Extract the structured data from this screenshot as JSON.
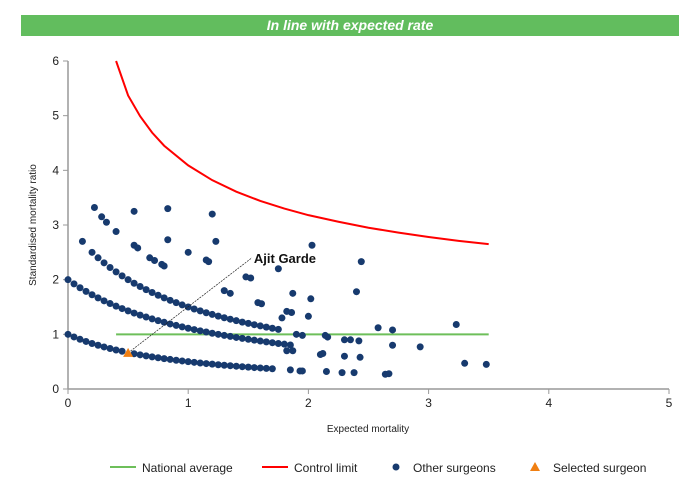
{
  "banner": {
    "text": "In line with expected rate",
    "color": "#62bd5e"
  },
  "chart_data": {
    "type": "scatter",
    "xlabel": "Expected mortality",
    "ylabel": "Standardised mortality ratio",
    "xlim": [
      0,
      5
    ],
    "ylim": [
      0,
      6
    ],
    "xticks": [
      "0",
      "1",
      "2",
      "3",
      "4",
      "5"
    ],
    "yticks": [
      "0",
      "1",
      "2",
      "3",
      "4",
      "5",
      "6"
    ],
    "grid": false,
    "legend_placement": "bottom",
    "colors": {
      "national_average": "#6dbf5a",
      "control_limit": "#ff0000",
      "other_surgeons": "#173a6e",
      "selected_surgeon": "#f07f12"
    },
    "legend": [
      "National average",
      "Control limit",
      "Other surgeons",
      "Selected surgeon"
    ],
    "national_average": {
      "name": "National average",
      "points": [
        [
          0.4,
          1
        ],
        [
          3.5,
          1
        ]
      ]
    },
    "control_limit": {
      "name": "Control limit",
      "points": [
        [
          0.4,
          6.0
        ],
        [
          0.5,
          5.37
        ],
        [
          0.6,
          4.99
        ],
        [
          0.7,
          4.69
        ],
        [
          0.8,
          4.45
        ],
        [
          1,
          4.09
        ],
        [
          1.2,
          3.82
        ],
        [
          1.4,
          3.61
        ],
        [
          1.6,
          3.44
        ],
        [
          1.8,
          3.3
        ],
        [
          2,
          3.18
        ],
        [
          2.25,
          3.06
        ],
        [
          2.5,
          2.95
        ],
        [
          2.75,
          2.86
        ],
        [
          3,
          2.78
        ],
        [
          3.25,
          2.71
        ],
        [
          3.5,
          2.65
        ]
      ]
    },
    "other_surgeons": {
      "name": "Other surgeons",
      "points": [
        [
          0,
          1
        ],
        [
          0.05,
          0.952
        ],
        [
          0.1,
          0.909
        ],
        [
          0.15,
          0.87
        ],
        [
          0.2,
          0.833
        ],
        [
          0.25,
          0.8
        ],
        [
          0.3,
          0.769
        ],
        [
          0.35,
          0.741
        ],
        [
          0.4,
          0.714
        ],
        [
          0.45,
          0.69
        ],
        [
          0.55,
          0.645
        ],
        [
          0.6,
          0.625
        ],
        [
          0.65,
          0.606
        ],
        [
          0.7,
          0.588
        ],
        [
          0.75,
          0.571
        ],
        [
          0.8,
          0.556
        ],
        [
          0.85,
          0.541
        ],
        [
          0.9,
          0.526
        ],
        [
          0.95,
          0.513
        ],
        [
          1,
          0.5
        ],
        [
          1.05,
          0.488
        ],
        [
          1.1,
          0.476
        ],
        [
          1.15,
          0.465
        ],
        [
          1.2,
          0.455
        ],
        [
          1.25,
          0.444
        ],
        [
          1.3,
          0.435
        ],
        [
          1.35,
          0.426
        ],
        [
          1.4,
          0.417
        ],
        [
          1.45,
          0.408
        ],
        [
          1.5,
          0.4
        ],
        [
          1.55,
          0.392
        ],
        [
          1.6,
          0.385
        ],
        [
          1.65,
          0.377
        ],
        [
          1.7,
          0.37
        ],
        [
          0,
          2
        ],
        [
          0.05,
          1.923
        ],
        [
          0.1,
          1.852
        ],
        [
          0.15,
          1.786
        ],
        [
          0.2,
          1.724
        ],
        [
          0.25,
          1.667
        ],
        [
          0.3,
          1.613
        ],
        [
          0.35,
          1.563
        ],
        [
          0.4,
          1.515
        ],
        [
          0.45,
          1.471
        ],
        [
          0.5,
          1.429
        ],
        [
          0.55,
          1.389
        ],
        [
          0.6,
          1.351
        ],
        [
          0.65,
          1.316
        ],
        [
          0.7,
          1.282
        ],
        [
          0.75,
          1.25
        ],
        [
          0.8,
          1.22
        ],
        [
          0.85,
          1.19
        ],
        [
          0.9,
          1.163
        ],
        [
          0.95,
          1.136
        ],
        [
          1,
          1.111
        ],
        [
          1.05,
          1.087
        ],
        [
          1.1,
          1.064
        ],
        [
          1.15,
          1.042
        ],
        [
          1.2,
          1.02
        ],
        [
          1.25,
          1.0
        ],
        [
          1.3,
          0.98
        ],
        [
          1.35,
          0.962
        ],
        [
          1.4,
          0.943
        ],
        [
          1.45,
          0.926
        ],
        [
          1.5,
          0.909
        ],
        [
          1.55,
          0.893
        ],
        [
          1.6,
          0.877
        ],
        [
          1.65,
          0.862
        ],
        [
          1.7,
          0.847
        ],
        [
          1.75,
          0.833
        ],
        [
          1.8,
          0.82
        ],
        [
          1.85,
          0.806
        ],
        [
          0.2,
          2.5
        ],
        [
          0.25,
          2.4
        ],
        [
          0.3,
          2.308
        ],
        [
          0.35,
          2.222
        ],
        [
          0.4,
          2.143
        ],
        [
          0.45,
          2.069
        ],
        [
          0.5,
          2.0
        ],
        [
          0.55,
          1.935
        ],
        [
          0.6,
          1.875
        ],
        [
          0.65,
          1.818
        ],
        [
          0.7,
          1.765
        ],
        [
          0.75,
          1.714
        ],
        [
          0.8,
          1.667
        ],
        [
          0.85,
          1.622
        ],
        [
          0.9,
          1.579
        ],
        [
          0.95,
          1.538
        ],
        [
          1,
          1.5
        ],
        [
          1.05,
          1.463
        ],
        [
          1.1,
          1.429
        ],
        [
          1.15,
          1.395
        ],
        [
          1.2,
          1.364
        ],
        [
          1.25,
          1.333
        ],
        [
          1.3,
          1.304
        ],
        [
          1.35,
          1.277
        ],
        [
          1.4,
          1.25
        ],
        [
          1.45,
          1.224
        ],
        [
          1.5,
          1.2
        ],
        [
          1.55,
          1.176
        ],
        [
          1.6,
          1.154
        ],
        [
          1.65,
          1.132
        ],
        [
          1.7,
          1.111
        ],
        [
          1.75,
          1.091
        ],
        [
          0.22,
          3.32
        ],
        [
          0.28,
          3.15
        ],
        [
          0.32,
          3.05
        ],
        [
          0.4,
          2.88
        ],
        [
          0.55,
          3.25
        ],
        [
          0.83,
          3.3
        ],
        [
          1.2,
          3.2
        ],
        [
          0.12,
          2.7
        ],
        [
          0.55,
          2.63
        ],
        [
          0.58,
          2.58
        ],
        [
          0.83,
          2.73
        ],
        [
          1.23,
          2.7
        ],
        [
          1.0,
          2.5
        ],
        [
          1.15,
          2.36
        ],
        [
          1.17,
          2.33
        ],
        [
          0.68,
          2.4
        ],
        [
          0.72,
          2.35
        ],
        [
          0.78,
          2.28
        ],
        [
          0.8,
          2.25
        ],
        [
          1.48,
          2.05
        ],
        [
          1.52,
          2.03
        ],
        [
          1.58,
          1.58
        ],
        [
          1.61,
          1.56
        ],
        [
          1.3,
          1.8
        ],
        [
          1.35,
          1.75
        ],
        [
          1.75,
          2.2
        ],
        [
          2.03,
          2.63
        ],
        [
          2.44,
          2.33
        ],
        [
          1.87,
          1.75
        ],
        [
          2.02,
          1.65
        ],
        [
          2.4,
          1.78
        ],
        [
          1.82,
          1.42
        ],
        [
          1.86,
          1.4
        ],
        [
          1.78,
          1.3
        ],
        [
          2.0,
          1.33
        ],
        [
          1.82,
          0.7
        ],
        [
          1.87,
          0.7
        ],
        [
          2.14,
          0.98
        ],
        [
          2.16,
          0.95
        ],
        [
          2.3,
          0.9
        ],
        [
          2.35,
          0.9
        ],
        [
          2.42,
          0.88
        ],
        [
          2.58,
          1.12
        ],
        [
          2.7,
          1.08
        ],
        [
          2.7,
          0.8
        ],
        [
          2.93,
          0.77
        ],
        [
          3.23,
          1.18
        ],
        [
          2.12,
          0.65
        ],
        [
          2.1,
          0.63
        ],
        [
          2.3,
          0.6
        ],
        [
          2.43,
          0.58
        ],
        [
          1.85,
          0.35
        ],
        [
          1.93,
          0.33
        ],
        [
          1.95,
          0.33
        ],
        [
          2.15,
          0.32
        ],
        [
          2.28,
          0.3
        ],
        [
          2.38,
          0.3
        ],
        [
          2.64,
          0.27
        ],
        [
          2.67,
          0.28
        ],
        [
          3.3,
          0.47
        ],
        [
          3.48,
          0.45
        ],
        [
          1.9,
          1.0
        ],
        [
          1.95,
          0.98
        ]
      ]
    },
    "selected_surgeon": {
      "name": "Selected surgeon",
      "label": "Ajit Garde",
      "point": [
        0.5,
        0.66
      ],
      "label_at": [
        1.53,
        2.4
      ]
    }
  }
}
